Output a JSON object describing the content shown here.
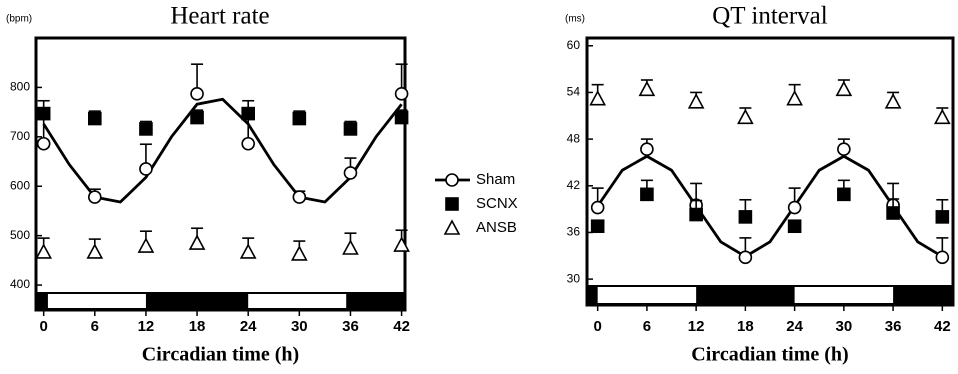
{
  "chart_data": [
    {
      "type": "scatter",
      "title": "Heart rate",
      "unit": "(bpm)",
      "xlabel": "Circadian time (h)",
      "x": [
        0,
        6,
        12,
        18,
        24,
        30,
        36,
        42
      ],
      "xlim": [
        -0.9,
        42.4
      ],
      "xticks": [
        0,
        6,
        12,
        18,
        24,
        30,
        36,
        42
      ],
      "ylim": [
        390,
        900
      ],
      "yticks": [
        400,
        500,
        600,
        700,
        800
      ],
      "light_periods": [
        [
          0.5,
          12
        ],
        [
          24,
          35.5
        ]
      ],
      "series": [
        {
          "name": "Sham",
          "color": "#000000",
          "marker": "circle",
          "values": [
            686,
            578,
            635,
            787,
            686,
            578,
            627,
            787
          ],
          "errors": [
            50,
            16,
            50,
            60,
            57,
            12,
            30,
            60
          ],
          "fit": {
            "x": [
              0,
              3,
              6,
              9,
              12,
              15,
              18,
              21,
              24,
              27,
              30,
              33,
              36,
              39,
              42
            ],
            "values": [
              726,
              644,
              578,
              568,
              618,
              700,
              766,
              776,
              726,
              644,
              578,
              568,
              618,
              700,
              766
            ]
          }
        },
        {
          "name": "SCNX",
          "color": "#000000",
          "marker": "square",
          "values": [
            747,
            737,
            716,
            739,
            747,
            737,
            716,
            739
          ],
          "errors": [
            26,
            15,
            15,
            15,
            26,
            15,
            15,
            15
          ]
        },
        {
          "name": "ANSB",
          "color": "#000000",
          "marker": "triangle",
          "values": [
            467,
            467,
            479,
            485,
            467,
            463,
            475,
            481
          ],
          "errors": [
            28,
            26,
            30,
            30,
            28,
            26,
            30,
            30
          ]
        }
      ]
    },
    {
      "type": "scatter",
      "title": "QT interval",
      "unit": "(ms)",
      "xlabel": "Circadian time (h)",
      "x": [
        0,
        6,
        12,
        18,
        24,
        30,
        36,
        42
      ],
      "xlim": [
        -1.3,
        43.3
      ],
      "xticks": [
        0,
        6,
        12,
        18,
        24,
        30,
        36,
        42
      ],
      "ylim": [
        29.5,
        61
      ],
      "yticks": [
        30,
        36,
        42,
        48,
        54,
        60
      ],
      "light_periods": [
        [
          0,
          12
        ],
        [
          24,
          36
        ]
      ],
      "series": [
        {
          "name": "Sham",
          "color": "#000000",
          "marker": "circle",
          "values": [
            39.2,
            46.7,
            39.5,
            32.8,
            39.2,
            46.7,
            39.5,
            32.8
          ],
          "errors": [
            2.5,
            1.3,
            2.8,
            2.5,
            2.5,
            1.3,
            2.8,
            2.5
          ],
          "fit": {
            "x": [
              0,
              3,
              6,
              9,
              12,
              15,
              18,
              21,
              24,
              27,
              30,
              33,
              36,
              39,
              42
            ],
            "values": [
              39.4,
              44.0,
              45.8,
              44.0,
              39.4,
              34.8,
              32.9,
              34.8,
              39.4,
              44.0,
              45.8,
              44.0,
              39.4,
              34.8,
              32.9
            ]
          }
        },
        {
          "name": "SCNX",
          "color": "#000000",
          "marker": "square",
          "values": [
            36.8,
            40.9,
            38.3,
            38.0,
            36.8,
            40.9,
            38.5,
            38.0
          ],
          "errors": [
            0.5,
            1.8,
            1.8,
            2.2,
            0.5,
            1.8,
            1.8,
            2.2
          ]
        },
        {
          "name": "ANSB",
          "color": "#000000",
          "marker": "triangle",
          "values": [
            53.2,
            54.4,
            52.8,
            50.8,
            53.2,
            54.4,
            52.8,
            50.8
          ],
          "errors": [
            1.8,
            1.2,
            1.2,
            1.2,
            1.8,
            1.2,
            1.2,
            1.2
          ]
        }
      ]
    }
  ]
}
